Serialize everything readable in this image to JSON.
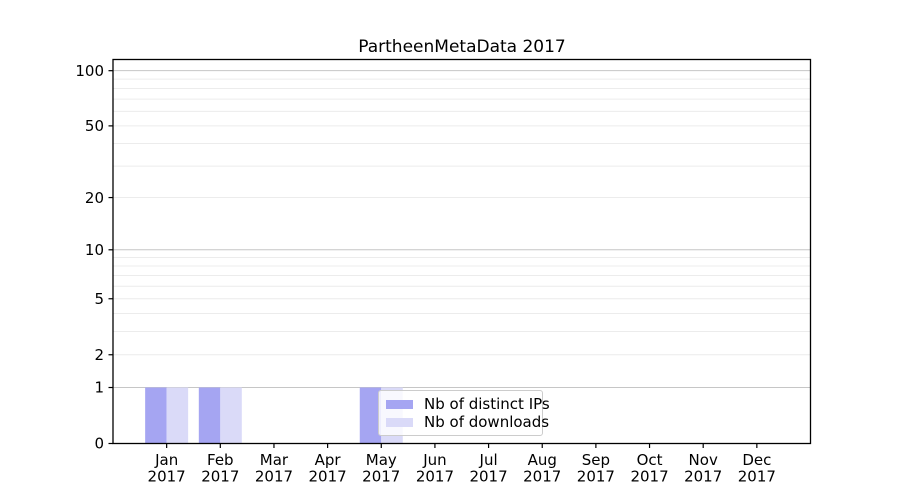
{
  "chart_data": {
    "type": "bar",
    "title": "PartheenMetaData 2017",
    "categories": [
      "Jan",
      "Feb",
      "Mar",
      "Apr",
      "May",
      "Jun",
      "Jul",
      "Aug",
      "Sep",
      "Oct",
      "Nov",
      "Dec"
    ],
    "x_year_label": "2017",
    "series": [
      {
        "name": "Nb of distinct IPs",
        "color": "#a5a5f2",
        "values": [
          1,
          1,
          0,
          0,
          1,
          0,
          0,
          0,
          0,
          0,
          0,
          0
        ]
      },
      {
        "name": "Nb of downloads",
        "color": "#dadaf8",
        "values": [
          1,
          1,
          0,
          0,
          1,
          0,
          0,
          0,
          0,
          0,
          0,
          0
        ]
      }
    ],
    "yscale": "log1p",
    "ylim": [
      0,
      115
    ],
    "yticks": [
      0,
      1,
      2,
      5,
      10,
      20,
      50,
      100
    ],
    "major_gridlines": [
      1,
      10,
      100
    ],
    "minor_gridlines": [
      2,
      3,
      4,
      5,
      6,
      7,
      8,
      9,
      20,
      30,
      40,
      50,
      60,
      70,
      80,
      90
    ],
    "legend_position": "lower center",
    "grid": true
  },
  "colors": {
    "bar_distinct_ips": "#a5a5f2",
    "bar_downloads": "#dadaf8",
    "grid_major": "#c6c6c6",
    "grid_minor": "#ececec",
    "axis": "#000000",
    "text": "#000000",
    "legend_border": "#cccccc",
    "background": "#ffffff"
  }
}
